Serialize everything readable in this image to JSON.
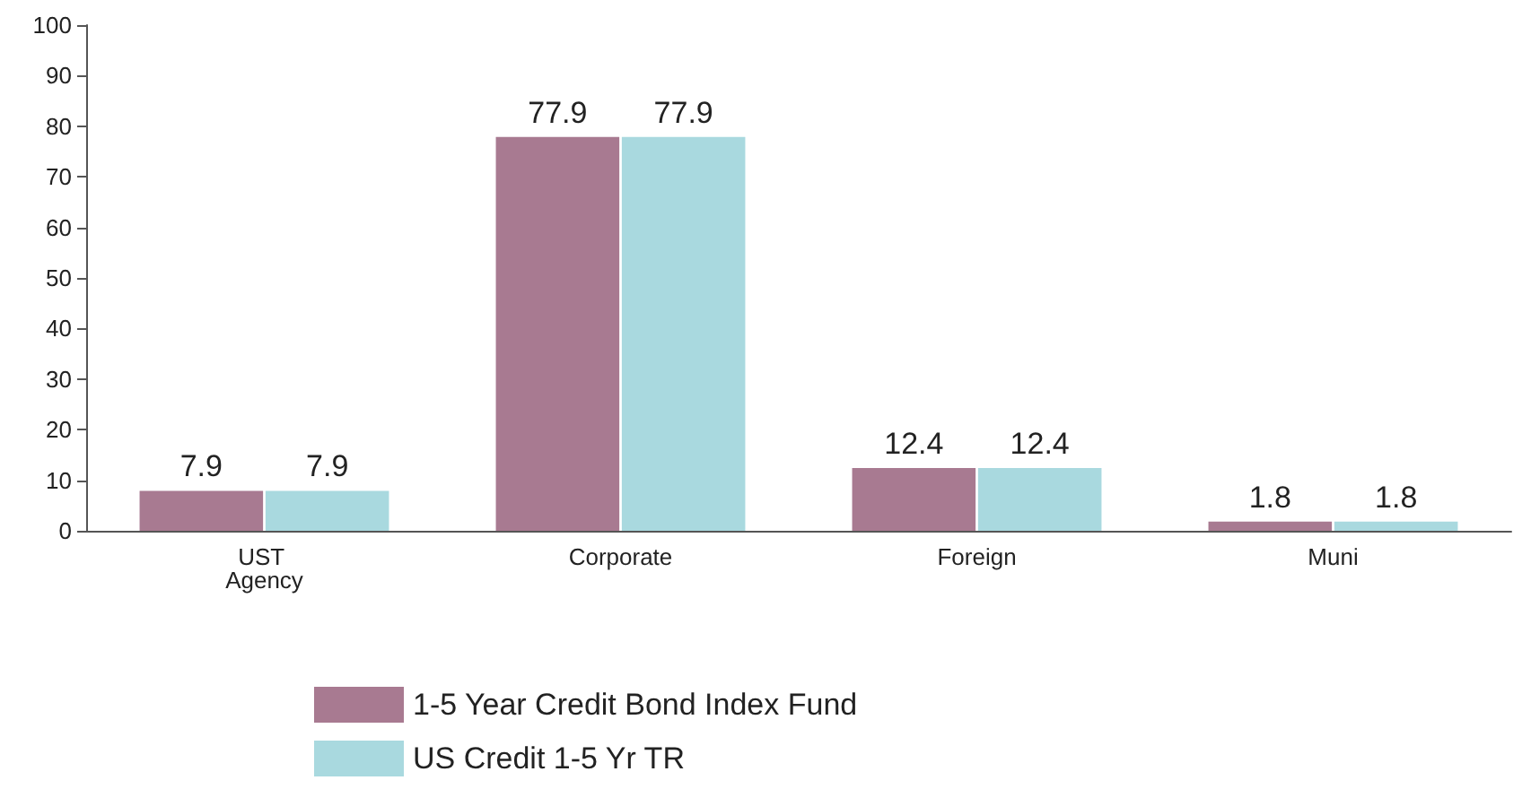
{
  "chart_data": {
    "type": "bar",
    "categories": [
      "UST Agency",
      "Corporate",
      "Foreign",
      "Muni"
    ],
    "series": [
      {
        "name": "1-5 Year Credit Bond Index Fund",
        "color": "#a87a91",
        "values": [
          7.9,
          77.9,
          12.4,
          1.8
        ]
      },
      {
        "name": "US Credit 1-5 Yr TR",
        "color": "#a9d9df",
        "values": [
          7.9,
          77.9,
          12.4,
          1.8
        ]
      }
    ],
    "ylim": [
      0,
      100
    ],
    "yticks": [
      0,
      10,
      20,
      30,
      40,
      50,
      60,
      70,
      80,
      90,
      100
    ],
    "grid": false,
    "legend": "bottom",
    "data_labels": true
  }
}
